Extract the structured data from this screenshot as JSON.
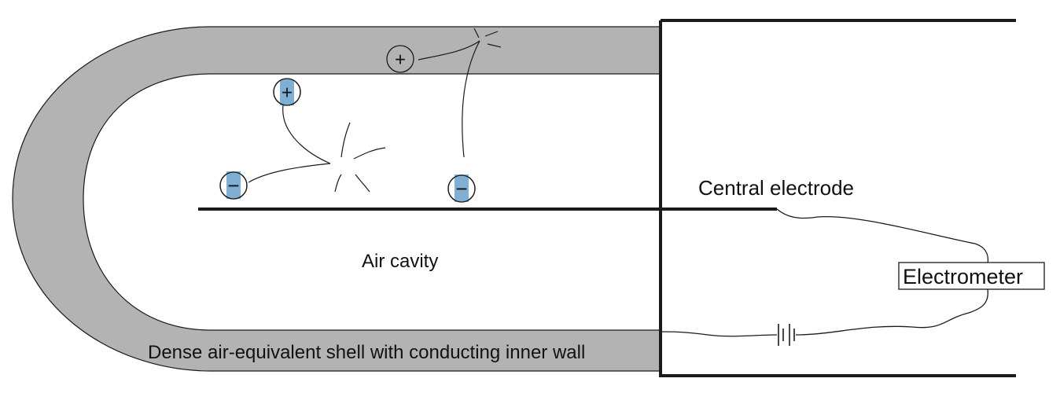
{
  "labels": {
    "central_electrode": "Central electrode",
    "electrometer": "Electrometer",
    "air_cavity": "Air cavity",
    "shell": "Dense air-equivalent shell with conducting inner wall"
  },
  "charges": {
    "positive": "+",
    "negative": "−"
  },
  "colors": {
    "shell_fill": "#b3b3b3",
    "ion_highlight": "#7fb0d4",
    "line": "#1a1a1a"
  }
}
